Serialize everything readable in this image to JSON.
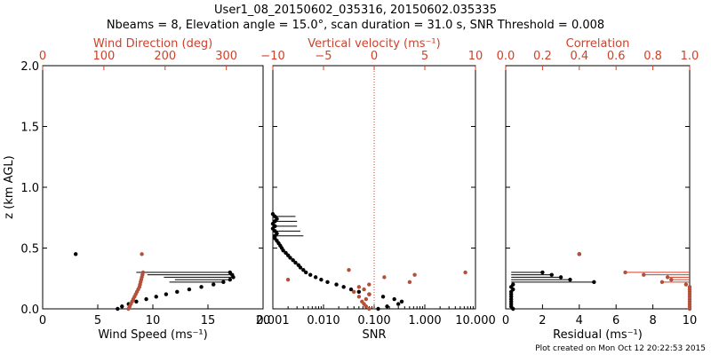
{
  "header": {
    "title": "User1_08_20150602_035316, 20150602.035335",
    "subtitle": "Nbeams = 8, Elevation angle = 15.0°, scan duration = 31.0 s, SNR Threshold = 0.008"
  },
  "footer": "Plot created on Mon Oct 12 20:22:53 2015",
  "colors": {
    "black": "#000000",
    "red": "#d0402a",
    "red_points": "#b4503a"
  },
  "chart_data": [
    {
      "type": "scatter",
      "panel": "wind",
      "xlabel": "Wind Speed (ms⁻¹)",
      "ylabel": "z (km AGL)",
      "xlim": [
        0,
        20
      ],
      "ylim": [
        0,
        2
      ],
      "xticks": [
        "0",
        "5",
        "10",
        "15",
        "20"
      ],
      "yticks": [
        "0.0",
        "0.5",
        "1.0",
        "1.5",
        "2.0"
      ],
      "top_axis": {
        "label": "Wind Direction (deg)",
        "lim": [
          0,
          360
        ],
        "ticks": [
          "0",
          "100",
          "200",
          "300"
        ]
      },
      "series": [
        {
          "axis": "bottom",
          "points": [
            [
              6.8,
              0.0
            ],
            [
              7.2,
              0.02
            ],
            [
              7.8,
              0.04
            ],
            [
              8.5,
              0.06
            ],
            [
              9.4,
              0.08
            ],
            [
              10.3,
              0.1
            ],
            [
              11.2,
              0.12
            ],
            [
              12.2,
              0.14
            ],
            [
              13.3,
              0.16
            ],
            [
              14.4,
              0.18
            ],
            [
              15.5,
              0.2
            ],
            [
              16.4,
              0.22
            ],
            [
              17.0,
              0.24
            ],
            [
              17.3,
              0.26
            ],
            [
              17.2,
              0.28
            ],
            [
              17.0,
              0.3
            ],
            [
              3.0,
              0.45
            ]
          ]
        },
        {
          "axis": "top",
          "points": [
            [
              140,
              0.0
            ],
            [
              142,
              0.02
            ],
            [
              144,
              0.04
            ],
            [
              146,
              0.06
            ],
            [
              148,
              0.08
            ],
            [
              150,
              0.1
            ],
            [
              152,
              0.12
            ],
            [
              154,
              0.14
            ],
            [
              156,
              0.16
            ],
            [
              158,
              0.18
            ],
            [
              159,
              0.2
            ],
            [
              160,
              0.22
            ],
            [
              161,
              0.24
            ],
            [
              162,
              0.26
            ],
            [
              163,
              0.28
            ],
            [
              164,
              0.3
            ],
            [
              162,
              0.45
            ]
          ]
        }
      ],
      "hlines": [
        {
          "y": 0.22,
          "x": [
            11.5,
            16.4
          ]
        },
        {
          "y": 0.24,
          "x": [
            12.0,
            17.0
          ]
        },
        {
          "y": 0.26,
          "x": [
            11.0,
            17.3
          ]
        },
        {
          "y": 0.28,
          "x": [
            9.5,
            17.2
          ]
        },
        {
          "y": 0.3,
          "x": [
            8.5,
            17.0
          ]
        }
      ]
    },
    {
      "type": "scatter",
      "panel": "snr",
      "xlabel": "SNR",
      "xlim": [
        0.001,
        10
      ],
      "xscale": "log",
      "ylim": [
        0,
        2
      ],
      "xticks": [
        "0.001",
        "0.010",
        "0.100",
        "1.000",
        "10.000"
      ],
      "top_axis": {
        "label": "Vertical velocity (ms⁻¹)",
        "lim": [
          -10,
          10
        ],
        "ticks": [
          "−10",
          "−5",
          "0",
          "5",
          "10"
        ],
        "zero_line": true
      },
      "series": [
        {
          "axis": "bottom",
          "points": [
            [
              0.12,
              0.0
            ],
            [
              0.18,
              0.02
            ],
            [
              0.3,
              0.04
            ],
            [
              0.35,
              0.06
            ],
            [
              0.25,
              0.08
            ],
            [
              0.15,
              0.1
            ],
            [
              0.08,
              0.12
            ],
            [
              0.05,
              0.14
            ],
            [
              0.035,
              0.16
            ],
            [
              0.025,
              0.18
            ],
            [
              0.018,
              0.2
            ],
            [
              0.012,
              0.22
            ],
            [
              0.009,
              0.24
            ],
            [
              0.007,
              0.26
            ],
            [
              0.0055,
              0.28
            ],
            [
              0.0045,
              0.3
            ],
            [
              0.004,
              0.32
            ],
            [
              0.0035,
              0.34
            ],
            [
              0.0032,
              0.36
            ],
            [
              0.0028,
              0.38
            ],
            [
              0.0025,
              0.4
            ],
            [
              0.0022,
              0.42
            ],
            [
              0.002,
              0.44
            ],
            [
              0.0018,
              0.46
            ],
            [
              0.0016,
              0.48
            ],
            [
              0.0015,
              0.5
            ],
            [
              0.0014,
              0.52
            ],
            [
              0.0013,
              0.54
            ],
            [
              0.0012,
              0.56
            ],
            [
              0.0011,
              0.58
            ],
            [
              0.0011,
              0.6
            ],
            [
              0.0012,
              0.62
            ],
            [
              0.0011,
              0.64
            ],
            [
              0.001,
              0.66
            ],
            [
              0.0011,
              0.68
            ],
            [
              0.001,
              0.7
            ],
            [
              0.0011,
              0.72
            ],
            [
              0.0012,
              0.74
            ],
            [
              0.0011,
              0.76
            ],
            [
              0.001,
              0.78
            ]
          ]
        },
        {
          "axis": "top",
          "points": [
            [
              -0.5,
              0.0
            ],
            [
              -0.8,
              0.02
            ],
            [
              -1.0,
              0.04
            ],
            [
              -1.2,
              0.06
            ],
            [
              -0.8,
              0.08
            ],
            [
              -1.5,
              0.1
            ],
            [
              -0.5,
              0.12
            ],
            [
              -2.0,
              0.14
            ],
            [
              -1.0,
              0.16
            ],
            [
              -1.5,
              0.18
            ],
            [
              -0.5,
              0.2
            ],
            [
              3.5,
              0.22
            ],
            [
              -8.5,
              0.24
            ],
            [
              1.0,
              0.26
            ],
            [
              4.0,
              0.28
            ],
            [
              9.0,
              0.3
            ],
            [
              -2.5,
              0.32
            ]
          ]
        }
      ],
      "hlines": [
        {
          "y": 0.6,
          "x": [
            0.001,
            0.004
          ]
        },
        {
          "y": 0.64,
          "x": [
            0.001,
            0.0035
          ]
        },
        {
          "y": 0.68,
          "x": [
            0.001,
            0.003
          ]
        },
        {
          "y": 0.72,
          "x": [
            0.001,
            0.003
          ]
        },
        {
          "y": 0.76,
          "x": [
            0.001,
            0.0028
          ]
        }
      ]
    },
    {
      "type": "scatter",
      "panel": "residual",
      "xlabel": "Residual (ms⁻¹)",
      "xlim": [
        0,
        10
      ],
      "ylim": [
        0,
        2
      ],
      "xticks": [
        "0",
        "2",
        "4",
        "6",
        "8",
        "10"
      ],
      "top_axis": {
        "label": "Correlation",
        "lim": [
          0,
          1
        ],
        "ticks": [
          "0.0",
          "0.2",
          "0.4",
          "0.6",
          "0.8",
          "1.0"
        ]
      },
      "series": [
        {
          "axis": "bottom",
          "points": [
            [
              0.4,
              0.0
            ],
            [
              0.3,
              0.02
            ],
            [
              0.3,
              0.04
            ],
            [
              0.3,
              0.06
            ],
            [
              0.3,
              0.08
            ],
            [
              0.3,
              0.1
            ],
            [
              0.3,
              0.12
            ],
            [
              0.3,
              0.14
            ],
            [
              0.4,
              0.16
            ],
            [
              0.3,
              0.18
            ],
            [
              0.4,
              0.2
            ],
            [
              4.8,
              0.22
            ],
            [
              3.5,
              0.24
            ],
            [
              3.0,
              0.26
            ],
            [
              2.5,
              0.28
            ],
            [
              2.0,
              0.3
            ],
            [
              4.0,
              0.45
            ]
          ]
        },
        {
          "axis": "top",
          "points": [
            [
              1.0,
              0.0
            ],
            [
              1.0,
              0.02
            ],
            [
              1.0,
              0.04
            ],
            [
              1.0,
              0.06
            ],
            [
              1.0,
              0.08
            ],
            [
              1.0,
              0.1
            ],
            [
              1.0,
              0.12
            ],
            [
              1.0,
              0.14
            ],
            [
              1.0,
              0.16
            ],
            [
              1.0,
              0.18
            ],
            [
              0.98,
              0.2
            ],
            [
              0.85,
              0.22
            ],
            [
              0.9,
              0.24
            ],
            [
              0.88,
              0.26
            ],
            [
              0.75,
              0.28
            ],
            [
              0.65,
              0.3
            ],
            [
              0.4,
              0.45
            ]
          ]
        }
      ],
      "hlines": [
        {
          "y": 0.22,
          "x": [
            0.3,
            4.8
          ],
          "color": "black"
        },
        {
          "y": 0.24,
          "x": [
            0.3,
            3.5
          ],
          "color": "black"
        },
        {
          "y": 0.26,
          "x": [
            0.3,
            3.0
          ],
          "color": "black"
        },
        {
          "y": 0.28,
          "x": [
            0.3,
            2.5
          ],
          "color": "black"
        },
        {
          "y": 0.3,
          "x": [
            0.3,
            2.0
          ],
          "color": "black"
        },
        {
          "y": 0.22,
          "x": [
            8.5,
            10
          ],
          "color": "red"
        },
        {
          "y": 0.24,
          "x": [
            9.0,
            10
          ],
          "color": "red"
        },
        {
          "y": 0.26,
          "x": [
            8.8,
            10
          ],
          "color": "red"
        },
        {
          "y": 0.28,
          "x": [
            7.5,
            10
          ],
          "color": "red"
        },
        {
          "y": 0.3,
          "x": [
            6.5,
            10
          ],
          "color": "red"
        }
      ]
    }
  ]
}
